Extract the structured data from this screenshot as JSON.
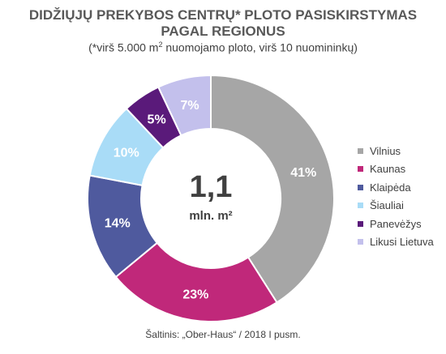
{
  "header": {
    "title_line1": "DIDŽIŲJŲ PREKYBOS CENTRŲ* PLOTO PASISKIRSTYMAS",
    "title_line2": "PAGAL REGIONUS",
    "subtitle_pre": "(*virš 5.000 m",
    "subtitle_sup": "2",
    "subtitle_post": " nuomojamo ploto, virš 10 nuomininkų)"
  },
  "center": {
    "value": "1,1",
    "unit": "mln. m²"
  },
  "chart_data": {
    "type": "pie",
    "donut": true,
    "title": "DIDŽIŲJŲ PREKYBOS CENTRŲ* PLOTO PASISKIRSTYMAS PAGAL REGIONUS",
    "categories": [
      "Vilnius",
      "Kaunas",
      "Klaipėda",
      "Šiauliai",
      "Panevėžys",
      "Likusi Lietuva"
    ],
    "values": [
      41,
      23,
      14,
      10,
      5,
      7
    ],
    "labels": [
      "41%",
      "23%",
      "14%",
      "10%",
      "5%",
      "7%"
    ],
    "colors": [
      "#a6a6a6",
      "#c0287a",
      "#4f5a9e",
      "#a9dcf7",
      "#5a1a7a",
      "#c3c0ec"
    ],
    "label_colors": [
      "#ffffff",
      "#ffffff",
      "#ffffff",
      "#ffffff",
      "#ffffff",
      "#ffffff"
    ],
    "legend_position": "right"
  },
  "footer": {
    "source": "Šaltinis: „Ober-Haus“ / 2018 I pusm."
  }
}
